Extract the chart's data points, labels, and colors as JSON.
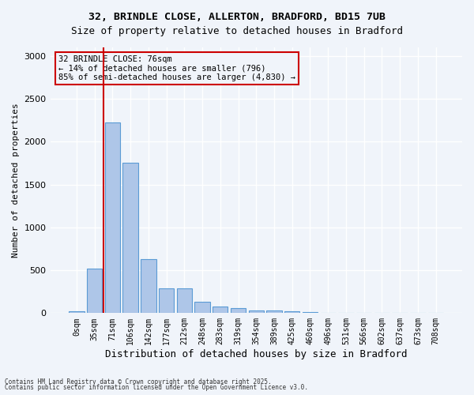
{
  "title_line1": "32, BRINDLE CLOSE, ALLERTON, BRADFORD, BD15 7UB",
  "title_line2": "Size of property relative to detached houses in Bradford",
  "xlabel": "Distribution of detached houses by size in Bradford",
  "ylabel": "Number of detached properties",
  "bar_values": [
    20,
    520,
    2220,
    1750,
    630,
    290,
    290,
    135,
    80,
    55,
    35,
    30,
    20,
    15,
    0,
    0,
    0,
    0,
    0,
    0,
    0
  ],
  "bar_labels": [
    "0sqm",
    "35sqm",
    "71sqm",
    "106sqm",
    "142sqm",
    "177sqm",
    "212sqm",
    "248sqm",
    "283sqm",
    "319sqm",
    "354sqm",
    "389sqm",
    "425sqm",
    "460sqm",
    "496sqm",
    "531sqm",
    "566sqm",
    "602sqm",
    "637sqm",
    "673sqm",
    "708sqm"
  ],
  "bar_color": "#aec6e8",
  "bar_edge_color": "#5b9bd5",
  "vline_color": "#cc0000",
  "annotation_title": "32 BRINDLE CLOSE: 76sqm",
  "annotation_line2": "← 14% of detached houses are smaller (796)",
  "annotation_line3": "85% of semi-detached houses are larger (4,830) →",
  "annotation_box_color": "#cc0000",
  "ylim": [
    0,
    3100
  ],
  "yticks": [
    0,
    500,
    1000,
    1500,
    2000,
    2500,
    3000
  ],
  "footnote1": "Contains HM Land Registry data © Crown copyright and database right 2025.",
  "footnote2": "Contains public sector information licensed under the Open Government Licence v3.0.",
  "bg_color": "#f0f4fa",
  "grid_color": "#ffffff"
}
